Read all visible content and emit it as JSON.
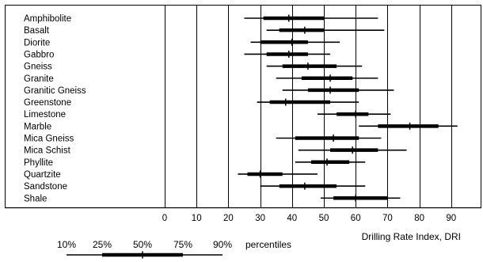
{
  "chart_data": {
    "type": "box",
    "categories": [
      "Amphibolite",
      "Basalt",
      "Diorite",
      "Gabbro",
      "Gneiss",
      "Granite",
      "Granitic Gneiss",
      "Greenstone",
      "Limestone",
      "Marble",
      "Mica Gneiss",
      "Mica Schist",
      "Phyllite",
      "Quartzite",
      "Sandstone",
      "Shale"
    ],
    "series": [
      {
        "p10": 25,
        "p25": 31,
        "p50": 39,
        "p75": 50,
        "p90": 67
      },
      {
        "p10": 32,
        "p25": 36,
        "p50": 44,
        "p75": 50,
        "p90": 69
      },
      {
        "p10": 27,
        "p25": 30,
        "p50": 40,
        "p75": 45,
        "p90": 55
      },
      {
        "p10": 25,
        "p25": 32,
        "p50": 39,
        "p75": 45,
        "p90": 52
      },
      {
        "p10": 32,
        "p25": 37,
        "p50": 45,
        "p75": 54,
        "p90": 62
      },
      {
        "p10": 35,
        "p25": 43,
        "p50": 52,
        "p75": 59,
        "p90": 67
      },
      {
        "p10": 37,
        "p25": 45,
        "p50": 52,
        "p75": 61,
        "p90": 72
      },
      {
        "p10": 29,
        "p25": 33,
        "p50": 38,
        "p75": 52,
        "p90": 61
      },
      {
        "p10": 48,
        "p25": 54,
        "p50": 60,
        "p75": 64,
        "p90": 71
      },
      {
        "p10": 61,
        "p25": 67,
        "p50": 77,
        "p75": 86,
        "p90": 92
      },
      {
        "p10": 35,
        "p25": 41,
        "p50": 53,
        "p75": 61,
        "p90": 68
      },
      {
        "p10": 42,
        "p25": 52,
        "p50": 59,
        "p75": 67,
        "p90": 76
      },
      {
        "p10": 41,
        "p25": 46,
        "p50": 51,
        "p75": 58,
        "p90": 63
      },
      {
        "p10": 23,
        "p25": 26,
        "p50": 30,
        "p75": 37,
        "p90": 48
      },
      {
        "p10": 30,
        "p25": 36,
        "p50": 44,
        "p75": 54,
        "p90": 63
      },
      {
        "p10": 49,
        "p25": 53,
        "p50": 60,
        "p75": 70,
        "p90": 74
      }
    ],
    "xlim": [
      0,
      100
    ],
    "xticks": [
      "0",
      "10",
      "20",
      "30",
      "40",
      "50",
      "60",
      "70",
      "80",
      "90"
    ],
    "xlabel": "Drilling Rate Index, DRI",
    "grid": "vertical",
    "legend": {
      "labels": [
        "10%",
        "25%",
        "50%",
        "75%",
        "90%"
      ],
      "title": "percentiles"
    }
  }
}
